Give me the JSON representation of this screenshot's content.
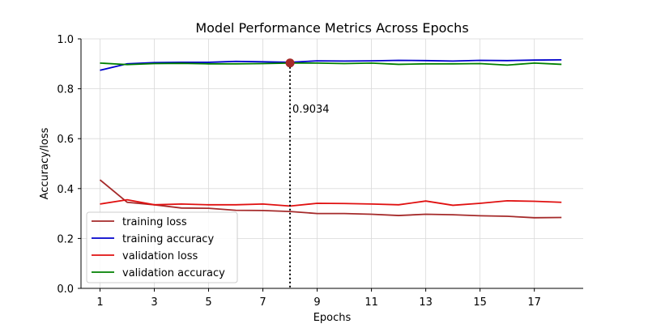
{
  "chart_data": {
    "type": "line",
    "title": "Model Performance Metrics Across Epochs",
    "xlabel": "Epochs",
    "ylabel": "Accuracy/loss",
    "xlim": [
      0.3,
      18.8
    ],
    "ylim": [
      0.0,
      1.0
    ],
    "xticks": [
      1,
      3,
      5,
      7,
      9,
      11,
      13,
      15,
      17
    ],
    "yticks": [
      0.0,
      0.2,
      0.4,
      0.6,
      0.8,
      1.0
    ],
    "xtick_labels": [
      "1",
      "3",
      "5",
      "7",
      "9",
      "11",
      "13",
      "15",
      "17"
    ],
    "ytick_labels": [
      "0.0",
      "0.2",
      "0.4",
      "0.6",
      "0.8",
      "1.0"
    ],
    "grid": true,
    "legend_position": "lower-left",
    "x": [
      1,
      2,
      3,
      4,
      5,
      6,
      7,
      8,
      9,
      10,
      11,
      12,
      13,
      14,
      15,
      16,
      17,
      18
    ],
    "series": [
      {
        "name": "training loss",
        "color": "#a52a2a",
        "values": [
          0.435,
          0.345,
          0.335,
          0.322,
          0.321,
          0.313,
          0.312,
          0.308,
          0.3,
          0.3,
          0.297,
          0.292,
          0.297,
          0.295,
          0.291,
          0.289,
          0.283,
          0.284
        ]
      },
      {
        "name": "training accuracy",
        "color": "#0000cc",
        "values": [
          0.874,
          0.9,
          0.905,
          0.906,
          0.906,
          0.91,
          0.908,
          0.906,
          0.912,
          0.911,
          0.912,
          0.914,
          0.913,
          0.911,
          0.914,
          0.913,
          0.915,
          0.916
        ]
      },
      {
        "name": "validation loss",
        "color": "#e01010",
        "values": [
          0.338,
          0.355,
          0.335,
          0.338,
          0.335,
          0.335,
          0.338,
          0.33,
          0.341,
          0.34,
          0.338,
          0.335,
          0.35,
          0.333,
          0.341,
          0.351,
          0.349,
          0.345
        ]
      },
      {
        "name": "validation accuracy",
        "color": "#008000",
        "values": [
          0.903,
          0.897,
          0.901,
          0.902,
          0.9,
          0.9,
          0.901,
          0.903,
          0.903,
          0.901,
          0.903,
          0.898,
          0.9,
          0.9,
          0.901,
          0.895,
          0.903,
          0.898
        ]
      }
    ],
    "highlight": {
      "x": 8,
      "y": 0.9034,
      "label": "0.9034",
      "marker_color": "#a52a2a"
    }
  }
}
